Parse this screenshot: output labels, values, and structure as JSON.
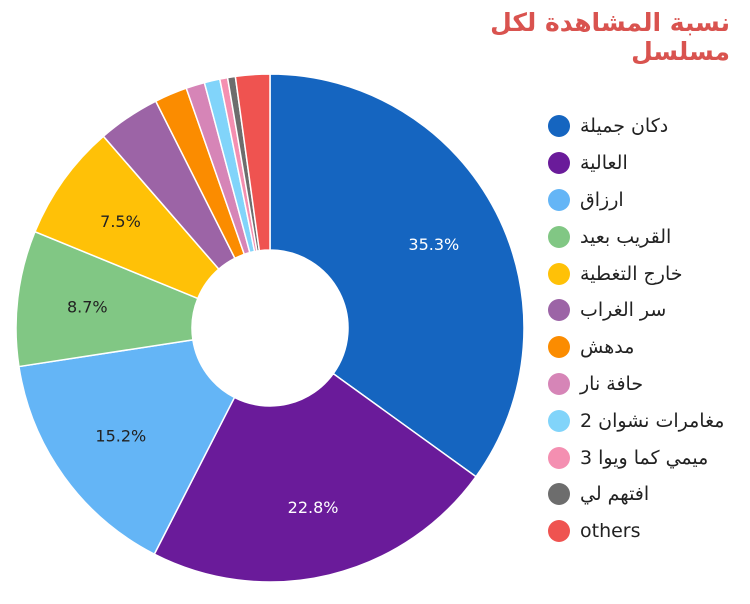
{
  "chart_data": {
    "type": "pie",
    "title": "نسبة المشاهدة لكل مسلسل",
    "donut": true,
    "legend_position": "right",
    "categories": [
      "دكان جميلة",
      "العالية",
      "ارزاق",
      "القريب بعيد",
      "خارج التغطية",
      "سر الغراب",
      "مدهش",
      "حافة نار",
      "مغامرات نشوان 2",
      "ميمي كما ويوا 3",
      "افتهم لي",
      "others"
    ],
    "values": [
      35.3,
      22.8,
      15.2,
      8.7,
      7.5,
      4.0,
      2.1,
      1.2,
      1.0,
      0.5,
      0.5,
      2.2
    ],
    "data_labels": [
      "35.3%",
      "22.8%",
      "15.2%",
      "8.7%",
      "7.5%",
      "",
      "",
      "",
      "",
      "",
      "",
      ""
    ],
    "colors": [
      "#1565c0",
      "#6a1b9a",
      "#64b5f6",
      "#81c784",
      "#ffc107",
      "#9c64a6",
      "#fb8c00",
      "#d685b7",
      "#81d4fa",
      "#f48fb1",
      "#6d6d6d",
      "#ef5350"
    ]
  }
}
